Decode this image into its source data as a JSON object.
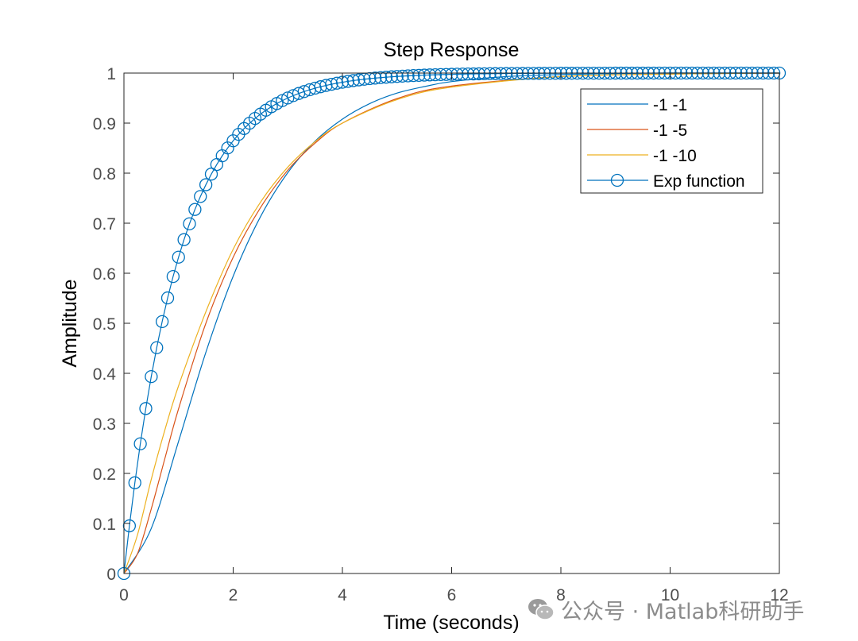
{
  "chart_data": {
    "type": "line",
    "title": "Step Response",
    "xlabel": "Time (seconds)",
    "ylabel": "Amplitude",
    "xlim": [
      0,
      12
    ],
    "ylim": [
      0,
      1
    ],
    "xticks": [
      0,
      2,
      4,
      6,
      8,
      10,
      12
    ],
    "yticks": [
      0,
      0.1,
      0.2,
      0.3,
      0.4,
      0.5,
      0.6,
      0.7,
      0.8,
      0.9,
      1
    ],
    "grid": false,
    "legend_position": "top-right",
    "series": [
      {
        "name": "-1 -1",
        "color": "#0072bd",
        "marker": "none",
        "x": [
          0,
          0.5,
          1,
          1.5,
          2,
          2.5,
          3,
          3.5,
          4,
          4.5,
          5,
          5.5,
          6,
          7,
          8,
          9,
          10,
          11,
          12
        ],
        "values": [
          0,
          0.09,
          0.264,
          0.442,
          0.594,
          0.713,
          0.801,
          0.864,
          0.908,
          0.939,
          0.96,
          0.973,
          0.983,
          0.993,
          0.997,
          0.999,
          1.0,
          1.0,
          1.0
        ]
      },
      {
        "name": "-1 -5",
        "color": "#d95319",
        "marker": "none",
        "x": [
          0,
          0.25,
          0.5,
          0.75,
          1,
          1.5,
          2,
          2.5,
          3,
          3.5,
          4,
          5,
          6,
          8,
          10,
          12
        ],
        "values": [
          0,
          0.04,
          0.129,
          0.23,
          0.329,
          0.5,
          0.632,
          0.731,
          0.806,
          0.86,
          0.9,
          0.949,
          0.974,
          0.993,
          0.998,
          1.0
        ]
      },
      {
        "name": "-1 -10",
        "color": "#edb120",
        "marker": "none",
        "x": [
          0,
          0.25,
          0.5,
          0.75,
          1,
          1.5,
          2,
          2.5,
          3,
          3.5,
          4,
          5,
          6,
          8,
          10,
          12
        ],
        "values": [
          0,
          0.078,
          0.188,
          0.287,
          0.375,
          0.523,
          0.648,
          0.742,
          0.812,
          0.863,
          0.9,
          0.947,
          0.972,
          0.993,
          0.998,
          1.0
        ]
      },
      {
        "name": "Exp function",
        "color": "#0072bd",
        "marker": "circle",
        "x_start": 0,
        "x_step": 0.1,
        "x_end": 12,
        "formula": "1 - exp(-t)"
      }
    ]
  },
  "watermark": {
    "text": "公众号 · Matlab科研助手"
  }
}
